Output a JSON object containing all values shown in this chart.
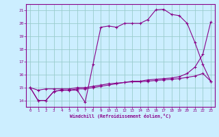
{
  "xlabel": "Windchill (Refroidissement éolien,°C)",
  "background_color": "#cceeff",
  "grid_color": "#99cccc",
  "line_color": "#880088",
  "xlim": [
    -0.5,
    23.5
  ],
  "ylim": [
    13.5,
    21.5
  ],
  "xticks": [
    0,
    1,
    2,
    3,
    4,
    5,
    6,
    7,
    8,
    9,
    10,
    11,
    12,
    13,
    14,
    15,
    16,
    17,
    18,
    19,
    20,
    21,
    22,
    23
  ],
  "yticks": [
    14,
    15,
    16,
    17,
    18,
    19,
    20,
    21
  ],
  "line1_x": [
    0,
    1,
    2,
    3,
    4,
    5,
    6,
    7,
    8,
    9,
    10,
    11,
    12,
    13,
    14,
    15,
    16,
    17,
    18,
    19,
    20,
    21,
    22,
    23
  ],
  "line1_y": [
    15.0,
    14.0,
    14.0,
    14.7,
    14.8,
    14.8,
    14.8,
    13.85,
    16.8,
    19.7,
    19.8,
    19.7,
    20.0,
    20.0,
    20.0,
    20.3,
    21.05,
    21.1,
    20.7,
    20.6,
    20.0,
    18.5,
    16.8,
    15.5
  ],
  "line2_x": [
    0,
    1,
    2,
    3,
    4,
    5,
    6,
    7,
    8,
    9,
    10,
    11,
    12,
    13,
    14,
    15,
    16,
    17,
    18,
    19,
    20,
    21,
    22,
    23
  ],
  "line2_y": [
    15.0,
    14.0,
    14.0,
    14.7,
    14.8,
    14.8,
    14.9,
    14.9,
    15.0,
    15.1,
    15.2,
    15.3,
    15.4,
    15.5,
    15.5,
    15.6,
    15.65,
    15.7,
    15.75,
    15.85,
    16.1,
    16.6,
    17.6,
    20.1
  ],
  "line3_x": [
    0,
    1,
    2,
    3,
    4,
    5,
    6,
    7,
    8,
    9,
    10,
    11,
    12,
    13,
    14,
    15,
    16,
    17,
    18,
    19,
    20,
    21,
    22,
    23
  ],
  "line3_y": [
    15.0,
    14.8,
    14.9,
    14.9,
    14.9,
    14.9,
    15.0,
    15.0,
    15.1,
    15.2,
    15.3,
    15.35,
    15.4,
    15.45,
    15.45,
    15.5,
    15.55,
    15.6,
    15.65,
    15.7,
    15.8,
    15.9,
    16.1,
    15.5
  ]
}
